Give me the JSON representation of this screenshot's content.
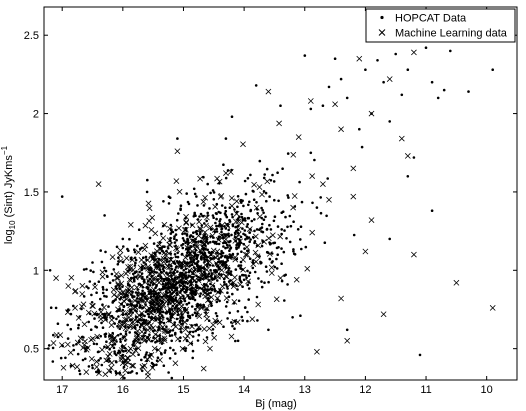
{
  "chart_data": {
    "type": "scatter",
    "xlabel": "Bj (mag)",
    "ylabel_main": "log",
    "ylabel_sub": "10",
    "ylabel_rest": " (Sint) JyKms",
    "ylabel_sup": "−1",
    "x_reversed": true,
    "xlim": [
      9.5,
      17.3
    ],
    "ylim": [
      0.3,
      2.68
    ],
    "x_ticks": [
      17,
      16,
      15,
      14,
      13,
      12,
      11,
      10
    ],
    "y_ticks": [
      0.5,
      1,
      1.5,
      2,
      2.5
    ],
    "y_tick_labels": [
      "0.5",
      "1",
      "1.5",
      "2",
      "2.5"
    ],
    "grid": false,
    "legend_position": "top-right",
    "series": [
      {
        "name": "HOPCAT Data",
        "marker": "dot",
        "color": "#000000",
        "cloud": {
          "x_center": 15.0,
          "y_center": 0.95,
          "slope": -0.22,
          "x_spread": 0.85,
          "y_spread": 0.22,
          "count": 1500
        },
        "points": [
          [
            17.2,
            1.0
          ],
          [
            17.1,
            0.76
          ],
          [
            17.0,
            1.47
          ],
          [
            16.9,
            0.75
          ],
          [
            16.5,
            1.05
          ],
          [
            16.0,
            1.2
          ],
          [
            15.1,
            1.84
          ],
          [
            14.6,
            1.55
          ],
          [
            14.3,
            1.84
          ],
          [
            13.4,
            2.05
          ],
          [
            13.0,
            2.37
          ],
          [
            12.9,
            2.03
          ],
          [
            12.7,
            2.05
          ],
          [
            12.6,
            2.17
          ],
          [
            12.5,
            2.35
          ],
          [
            12.3,
            2.1
          ],
          [
            12.1,
            1.9
          ],
          [
            12.0,
            2.28
          ],
          [
            11.9,
            2.0
          ],
          [
            11.8,
            2.34
          ],
          [
            11.7,
            2.2
          ],
          [
            11.5,
            2.38
          ],
          [
            11.4,
            2.12
          ],
          [
            11.3,
            2.28
          ],
          [
            11.2,
            1.72
          ],
          [
            11.0,
            2.42
          ],
          [
            10.9,
            2.2
          ],
          [
            10.8,
            2.1
          ],
          [
            10.7,
            2.15
          ],
          [
            10.6,
            2.4
          ],
          [
            10.3,
            2.14
          ],
          [
            9.9,
            2.28
          ],
          [
            10.9,
            1.38
          ],
          [
            11.3,
            1.6
          ],
          [
            11.6,
            1.2
          ],
          [
            12.8,
            1.4
          ],
          [
            13.6,
            0.62
          ],
          [
            14.1,
            0.55
          ],
          [
            11.1,
            0.46
          ],
          [
            12.3,
            0.62
          ],
          [
            13.2,
            0.7
          ],
          [
            12.4,
            2.22
          ],
          [
            13.8,
            2.18
          ],
          [
            14.2,
            1.98
          ],
          [
            15.6,
            1.5
          ],
          [
            16.3,
            1.35
          ],
          [
            11.6,
            1.95
          ],
          [
            12.9,
            1.75
          ]
        ]
      },
      {
        "name": "Machine Learning data",
        "marker": "x",
        "color": "#000000",
        "cloud": {
          "x_center": 15.3,
          "y_center": 0.85,
          "slope": -0.2,
          "x_spread": 0.8,
          "y_spread": 0.22,
          "count": 620
        },
        "points": [
          [
            17.1,
            0.95
          ],
          [
            16.9,
            0.9
          ],
          [
            16.4,
            1.55
          ],
          [
            15.1,
            1.76
          ],
          [
            14.3,
            1.62
          ],
          [
            13.6,
            2.14
          ],
          [
            12.9,
            2.08
          ],
          [
            12.5,
            2.06
          ],
          [
            12.4,
            1.9
          ],
          [
            12.1,
            2.35
          ],
          [
            11.9,
            2.0
          ],
          [
            11.6,
            2.22
          ],
          [
            11.4,
            1.84
          ],
          [
            11.3,
            1.73
          ],
          [
            11.2,
            2.39
          ],
          [
            12.2,
            1.47
          ],
          [
            12.0,
            1.12
          ],
          [
            11.9,
            1.32
          ],
          [
            11.2,
            1.1
          ],
          [
            10.5,
            0.92
          ],
          [
            9.9,
            0.76
          ],
          [
            11.7,
            0.72
          ],
          [
            12.3,
            0.55
          ],
          [
            12.8,
            0.48
          ],
          [
            12.4,
            0.82
          ],
          [
            13.4,
            0.95
          ],
          [
            12.6,
            1.45
          ],
          [
            12.2,
            1.65
          ],
          [
            13.1,
            1.85
          ],
          [
            12.7,
            1.55
          ]
        ]
      }
    ]
  }
}
